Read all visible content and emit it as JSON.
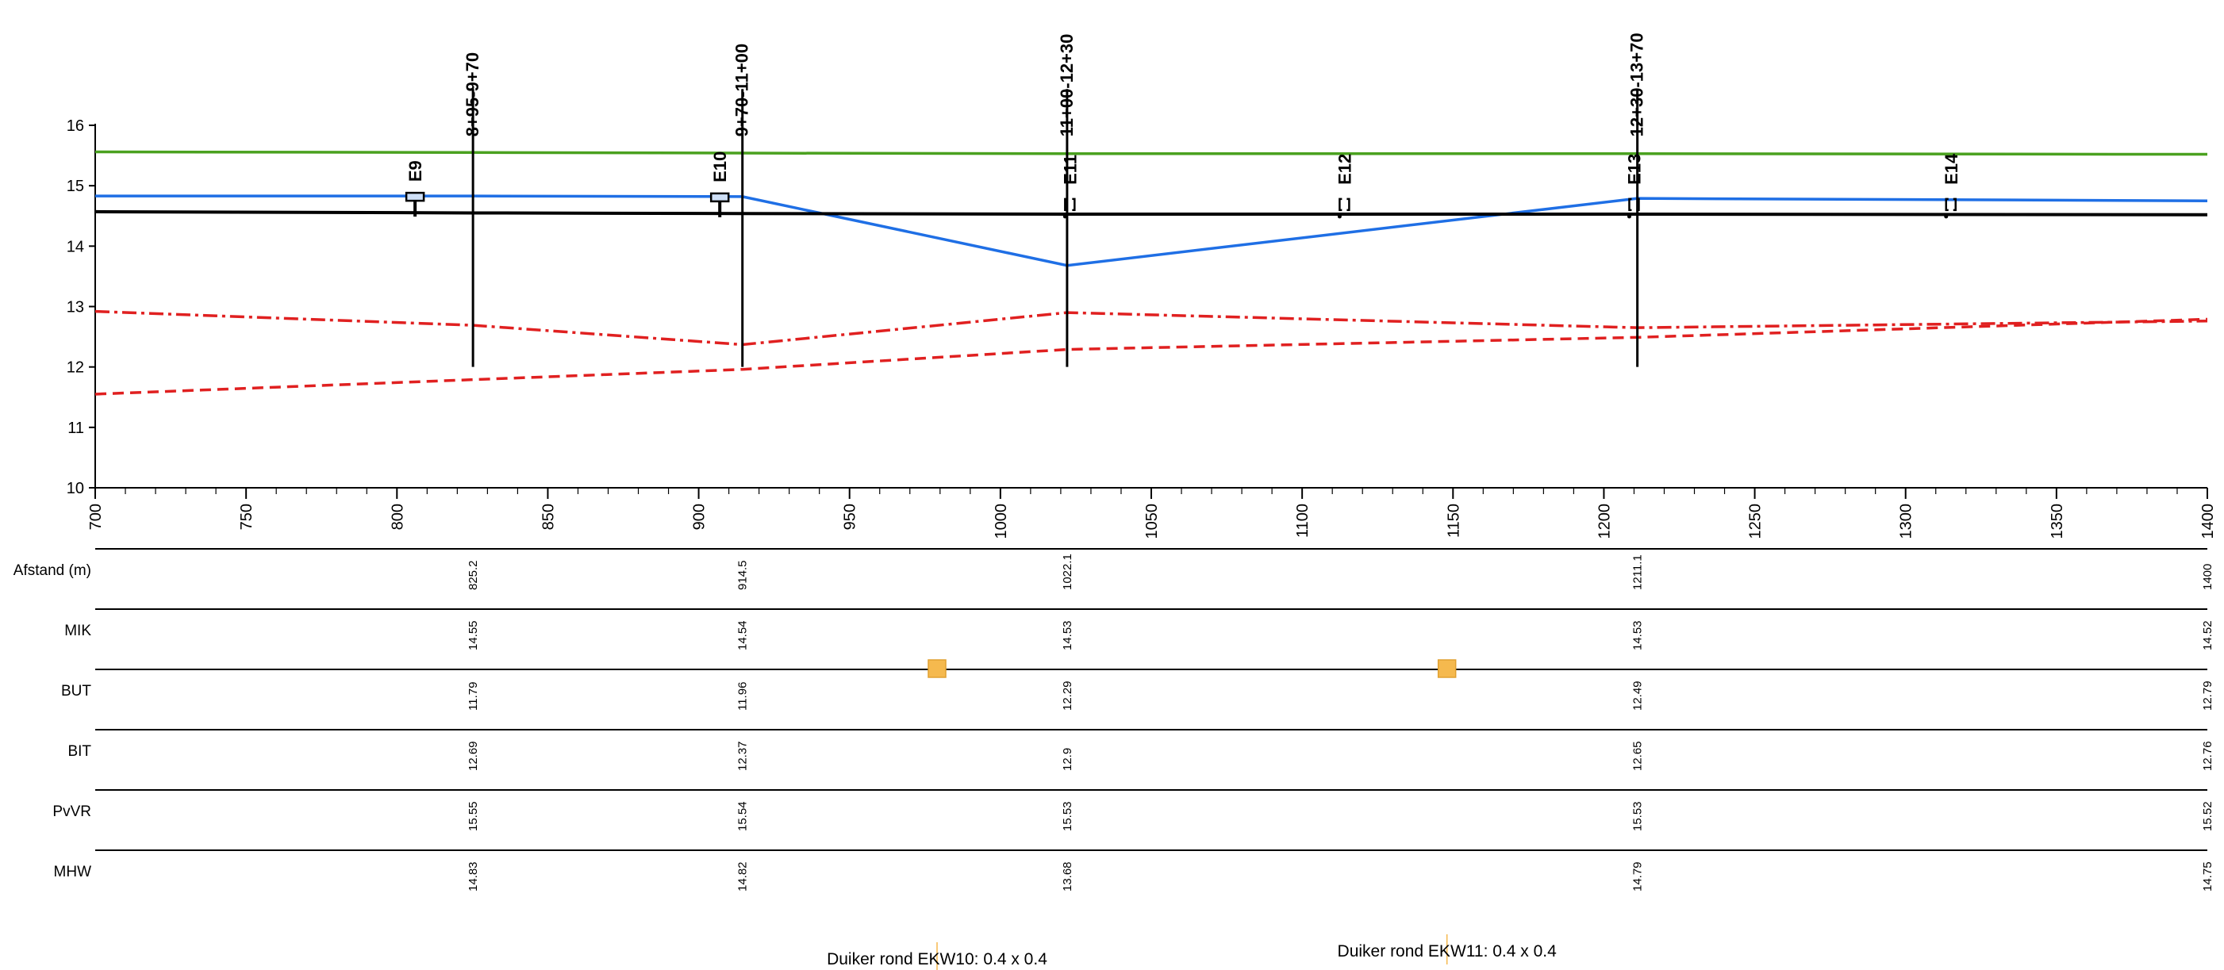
{
  "chart_data": {
    "type": "line",
    "title": "",
    "xlabel": "",
    "ylabel": "",
    "xlim": [
      700,
      1400
    ],
    "ylim": [
      10,
      16
    ],
    "x_ticks": [
      700,
      750,
      800,
      850,
      900,
      950,
      1000,
      1050,
      1100,
      1150,
      1200,
      1250,
      1300,
      1350,
      1400
    ],
    "y_ticks": [
      10,
      11,
      12,
      13,
      14,
      15,
      16
    ],
    "grid": false,
    "legend": "none",
    "series": [
      {
        "key": "pvvr",
        "color": "#4aa11f",
        "dash": "solid",
        "x": [
          700,
          825.2,
          914.5,
          1022.1,
          1211.1,
          1400
        ],
        "y": [
          15.56,
          15.55,
          15.54,
          15.53,
          15.53,
          15.52
        ]
      },
      {
        "key": "mhw",
        "color": "#1f6fe5",
        "dash": "solid",
        "x": [
          700,
          825.2,
          914.5,
          1022.1,
          1211.1,
          1400
        ],
        "y": [
          14.83,
          14.83,
          14.82,
          13.68,
          14.79,
          14.75
        ]
      },
      {
        "key": "mik",
        "color": "#000000",
        "dash": "solid",
        "x": [
          700,
          825.2,
          914.5,
          1022.1,
          1211.1,
          1400
        ],
        "y": [
          14.57,
          14.55,
          14.54,
          14.53,
          14.53,
          14.52
        ]
      },
      {
        "key": "bit",
        "color": "#e02020",
        "dash": "dashdot",
        "x": [
          700,
          825.2,
          914.5,
          1022.1,
          1211.1,
          1400
        ],
        "y": [
          12.92,
          12.69,
          12.37,
          12.9,
          12.65,
          12.76
        ]
      },
      {
        "key": "but",
        "color": "#e02020",
        "dash": "dash",
        "x": [
          700,
          825.2,
          914.5,
          1022.1,
          1211.1,
          1400
        ],
        "y": [
          11.55,
          11.79,
          11.96,
          12.29,
          12.49,
          12.79
        ]
      }
    ],
    "sections": [
      {
        "label": "8+95-9+70",
        "x": 825.2,
        "y_top": 16.6,
        "y_bottom": 12.0
      },
      {
        "label": "9+70-11+00",
        "x": 914.5,
        "y_top": 16.6,
        "y_bottom": 12.0
      },
      {
        "label": "11+00-12+30",
        "x": 1022.1,
        "y_top": 16.6,
        "y_bottom": 12.0
      },
      {
        "label": "12+30-13+70",
        "x": 1211.1,
        "y_top": 16.6,
        "y_bottom": 12.0
      }
    ],
    "structures": [
      {
        "label": "E9",
        "x": 806,
        "y": 14.83,
        "style": "box"
      },
      {
        "label": "E10",
        "x": 907,
        "y": 14.82,
        "style": "box"
      },
      {
        "label": "E11",
        "x": 1023,
        "y": 14.78,
        "style": "bracket"
      },
      {
        "label": "E12",
        "x": 1114,
        "y": 14.78,
        "style": "bracket"
      },
      {
        "label": "E13",
        "x": 1210,
        "y": 14.78,
        "style": "bracket"
      },
      {
        "label": "E14",
        "x": 1315,
        "y": 14.78,
        "style": "bracket"
      }
    ],
    "table": {
      "columns_x": [
        825.2,
        914.5,
        1022.1,
        1211.1,
        1400
      ],
      "rows": [
        {
          "label": "Afstand (m)",
          "values": [
            "825.2",
            "914.5",
            "1022.1",
            "1211.1",
            "1400"
          ]
        },
        {
          "label": "MIK",
          "values": [
            "14.55",
            "14.54",
            "14.53",
            "14.53",
            "14.52"
          ]
        },
        {
          "label": "BUT",
          "values": [
            "11.79",
            "11.96",
            "12.29",
            "12.49",
            "12.79"
          ]
        },
        {
          "label": "BIT",
          "values": [
            "12.69",
            "12.37",
            "12.9",
            "12.65",
            "12.76"
          ]
        },
        {
          "label": "PvVR",
          "values": [
            "15.55",
            "15.54",
            "15.53",
            "15.53",
            "15.52"
          ]
        },
        {
          "label": "MHW",
          "values": [
            "14.83",
            "14.82",
            "13.68",
            "14.79",
            "14.75"
          ]
        }
      ]
    },
    "culverts": [
      {
        "label": "Duiker rond EKW10: 0.4 x 0.4",
        "x": 979,
        "color": "#f5b94e"
      },
      {
        "label": "Duiker rond EKW11: 0.4 x 0.4",
        "x": 1148,
        "color": "#f5b94e"
      }
    ]
  }
}
